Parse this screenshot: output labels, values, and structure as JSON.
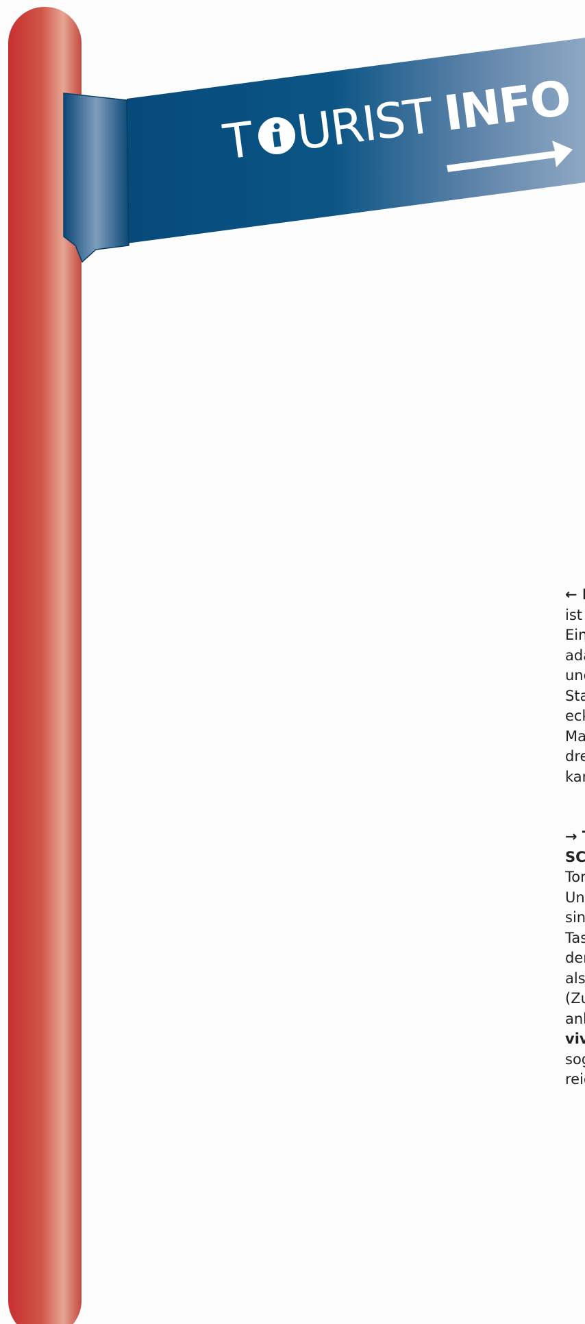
{
  "sign": {
    "word_1": "T",
    "word_2": "URIST",
    "word_3": "INFO"
  },
  "paragraphs": [
    {
      "lines": [
        {
          "text": "← I",
          "style": "bold"
        },
        {
          "text": "ist",
          "style": "normal"
        },
        {
          "text": "Ein",
          "style": "normal"
        },
        {
          "text": "ada",
          "style": "normal"
        },
        {
          "text": "und",
          "style": "normal"
        },
        {
          "text": "Sta",
          "style": "normal"
        },
        {
          "text": "eck",
          "style": "normal"
        },
        {
          "text": "Ma",
          "style": "normal"
        },
        {
          "text": "dre",
          "style": "normal"
        },
        {
          "text": "kan",
          "style": "normal"
        }
      ]
    },
    {
      "lines": [
        {
          "text": "→ T",
          "style": "bold"
        },
        {
          "text": "SC",
          "style": "bold"
        },
        {
          "text": "Tor",
          "style": "normal"
        },
        {
          "text": "Un",
          "style": "normal"
        },
        {
          "text": "sin",
          "style": "normal"
        },
        {
          "text": "Tas",
          "style": "normal"
        },
        {
          "text": "der",
          "style": "normal"
        },
        {
          "text": "als",
          "style": "normal"
        },
        {
          "text": "(Zu",
          "style": "normal"
        },
        {
          "text": "anb",
          "style": "normal"
        },
        {
          "text": "viv",
          "style": "bold"
        },
        {
          "text": "sog",
          "style": "normal"
        },
        {
          "text": "reic",
          "style": "normal"
        }
      ]
    }
  ]
}
